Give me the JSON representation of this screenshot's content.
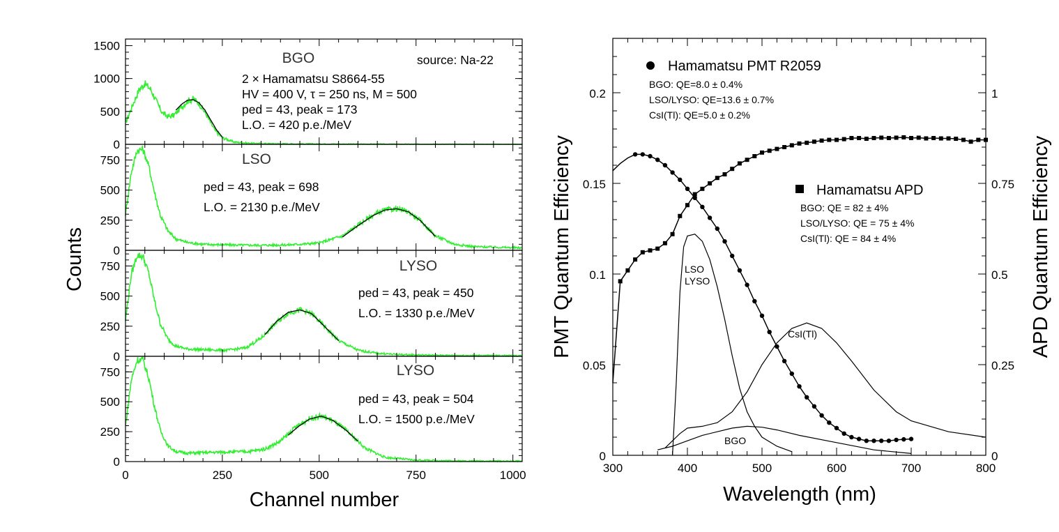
{
  "chart_data": [
    {
      "type": "line",
      "title": "",
      "xlabel": "Channel number",
      "ylabel": "Counts",
      "xlim": [
        0,
        1024
      ],
      "xticks": [
        0,
        250,
        500,
        750,
        1000
      ],
      "panels": [
        {
          "crystal": "BGO",
          "info_lines": [
            "2 × Hamamatsu S8664-55",
            "HV = 400 V,   τ = 250 ns,   M = 500",
            "ped = 43,   peak = 173",
            "L.O. = 420 p.e./MeV"
          ],
          "source": "source: Na-22",
          "ylim": [
            0,
            1600
          ],
          "yticks": [
            0,
            500,
            1000,
            1500
          ],
          "spectrum": {
            "x": [
              0,
              20,
              35,
              50,
              65,
              80,
              95,
              110,
              125,
              140,
              160,
              175,
              190,
              210,
              230,
              250,
              280,
              320,
              400,
              500,
              700,
              1024
            ],
            "y": [
              320,
              620,
              830,
              920,
              840,
              650,
              480,
              420,
              440,
              540,
              660,
              690,
              620,
              440,
              220,
              100,
              35,
              15,
              8,
              5,
              2,
              0
            ]
          },
          "fit": {
            "x": [
              130,
              145,
              160,
              175,
              190,
              205,
              220,
              235,
              250
            ],
            "y": [
              520,
              610,
              670,
              680,
              630,
              520,
              370,
              220,
              110
            ]
          }
        },
        {
          "crystal": "LSO",
          "info_lines": [
            "ped = 43,   peak = 698",
            "L.O. = 2130 p.e./MeV"
          ],
          "ylim": [
            0,
            880
          ],
          "yticks": [
            0,
            250,
            500,
            750
          ],
          "spectrum": {
            "x": [
              0,
              15,
              30,
              45,
              60,
              75,
              90,
              110,
              130,
              160,
              200,
              260,
              340,
              420,
              500,
              560,
              600,
              640,
              670,
              700,
              730,
              760,
              800,
              850,
              900,
              1024
            ],
            "y": [
              300,
              650,
              830,
              840,
              700,
              480,
              290,
              160,
              95,
              65,
              50,
              45,
              42,
              45,
              60,
              120,
              210,
              295,
              335,
              345,
              320,
              250,
              120,
              50,
              30,
              20
            ]
          },
          "fit": {
            "x": [
              560,
              600,
              640,
              670,
              700,
              730,
              760,
              800
            ],
            "y": [
              110,
              205,
              290,
              335,
              345,
              320,
              250,
              115
            ]
          }
        },
        {
          "crystal": "LYSO",
          "info_lines": [
            "ped = 43,   peak = 450",
            "L.O. = 1330 p.e./MeV"
          ],
          "ylim": [
            0,
            880
          ],
          "yticks": [
            0,
            250,
            500,
            750
          ],
          "spectrum": {
            "x": [
              0,
              15,
              30,
              45,
              60,
              75,
              90,
              110,
              130,
              160,
              200,
              260,
              310,
              350,
              390,
              420,
              450,
              480,
              510,
              550,
              600,
              650,
              700,
              800,
              1024
            ],
            "y": [
              300,
              680,
              840,
              830,
              690,
              460,
              270,
              140,
              85,
              60,
              55,
              50,
              70,
              150,
              280,
              360,
              385,
              355,
              260,
              130,
              50,
              25,
              15,
              8,
              5
            ]
          },
          "fit": {
            "x": [
              360,
              390,
              420,
              450,
              480,
              510,
              550
            ],
            "y": [
              180,
              290,
              365,
              385,
              355,
              260,
              130
            ]
          }
        },
        {
          "crystal": "LYSO",
          "info_lines": [
            "ped = 43,   peak = 504",
            "L.O. = 1500 p.e./MeV"
          ],
          "ylim": [
            0,
            880
          ],
          "yticks": [
            0,
            250,
            500,
            750
          ],
          "spectrum": {
            "x": [
              0,
              15,
              30,
              45,
              60,
              75,
              90,
              110,
              130,
              160,
              200,
              260,
              320,
              360,
              400,
              440,
              475,
              505,
              535,
              570,
              620,
              670,
              750,
              850,
              1024
            ],
            "y": [
              300,
              680,
              850,
              850,
              700,
              460,
              260,
              130,
              85,
              70,
              75,
              80,
              85,
              105,
              170,
              290,
              360,
              380,
              345,
              260,
              110,
              35,
              12,
              6,
              3
            ]
          },
          "fit": {
            "x": [
              420,
              445,
              475,
              505,
              535,
              570,
              600
            ],
            "y": [
              220,
              290,
              355,
              380,
              345,
              260,
              170
            ]
          }
        }
      ]
    },
    {
      "type": "line",
      "title": "",
      "xlabel": "Wavelength (nm)",
      "ylabel": "PMT Quantum Efficiency",
      "y2label": "APD Quantum Efficiency",
      "xlim": [
        300,
        800
      ],
      "ylim": [
        0,
        0.23
      ],
      "y2lim": [
        0,
        1.15
      ],
      "xticks": [
        300,
        400,
        500,
        600,
        700,
        800
      ],
      "yticks": [
        "0",
        "0.05",
        "0.1",
        "0.15",
        "0.2"
      ],
      "y2ticks": [
        "0",
        "0.25",
        "0.5",
        "0.75",
        "1"
      ],
      "legend": [
        {
          "marker": "circle",
          "label": "Hamamatsu PMT R2059",
          "lines": [
            "BGO: QE=8.0 ± 0.4%",
            "LSO/LYSO: QE=13.6 ± 0.7%",
            "CsI(Tl): QE=5.0 ± 0.2%"
          ]
        },
        {
          "marker": "square",
          "label": "Hamamatsu APD",
          "lines": [
            "BGO: QE = 82 ± 4%",
            "LSO/LYSO: QE = 75 ± 4%",
            "CsI(Tl): QE = 84 ± 4%"
          ]
        }
      ],
      "series": [
        {
          "name": "Hamamatsu PMT R2059",
          "axis": "left",
          "marker": "circle",
          "x": [
            300,
            310,
            320,
            330,
            340,
            350,
            360,
            370,
            380,
            390,
            400,
            410,
            420,
            430,
            440,
            450,
            460,
            470,
            480,
            490,
            500,
            510,
            520,
            530,
            540,
            550,
            560,
            570,
            580,
            590,
            600,
            610,
            620,
            630,
            640,
            650,
            660,
            670,
            680,
            690,
            700
          ],
          "y": [
            0.157,
            0.161,
            0.164,
            0.166,
            0.166,
            0.165,
            0.163,
            0.16,
            0.156,
            0.152,
            0.147,
            0.142,
            0.137,
            0.131,
            0.125,
            0.118,
            0.11,
            0.102,
            0.094,
            0.085,
            0.077,
            0.068,
            0.06,
            0.052,
            0.045,
            0.038,
            0.032,
            0.027,
            0.022,
            0.018,
            0.015,
            0.012,
            0.01,
            0.009,
            0.008,
            0.008,
            0.008,
            0.008,
            0.0085,
            0.0088,
            0.009
          ]
        },
        {
          "name": "Hamamatsu APD",
          "axis": "right",
          "marker": "square",
          "x": [
            300,
            310,
            320,
            330,
            340,
            350,
            360,
            370,
            380,
            390,
            400,
            410,
            420,
            430,
            440,
            450,
            460,
            470,
            480,
            490,
            500,
            510,
            520,
            530,
            540,
            550,
            560,
            570,
            580,
            590,
            600,
            610,
            620,
            630,
            640,
            650,
            660,
            670,
            680,
            690,
            700,
            710,
            720,
            730,
            740,
            750,
            760,
            770,
            780,
            790,
            800
          ],
          "y": [
            0.2,
            0.48,
            0.51,
            0.54,
            0.56,
            0.565,
            0.57,
            0.585,
            0.61,
            0.66,
            0.69,
            0.72,
            0.735,
            0.75,
            0.765,
            0.775,
            0.79,
            0.805,
            0.815,
            0.825,
            0.835,
            0.84,
            0.845,
            0.85,
            0.855,
            0.86,
            0.862,
            0.865,
            0.868,
            0.87,
            0.87,
            0.872,
            0.875,
            0.875,
            0.873,
            0.875,
            0.876,
            0.875,
            0.876,
            0.877,
            0.875,
            0.876,
            0.874,
            0.875,
            0.874,
            0.874,
            0.873,
            0.87,
            0.865,
            0.87,
            0.87
          ]
        },
        {
          "name": "LSO LYSO",
          "axis": "left",
          "marker": "none",
          "x": [
            380,
            385,
            390,
            395,
            400,
            410,
            420,
            430,
            440,
            450,
            460,
            470,
            480,
            490,
            500,
            520,
            540
          ],
          "y": [
            0.0,
            0.04,
            0.09,
            0.115,
            0.121,
            0.122,
            0.118,
            0.108,
            0.093,
            0.075,
            0.055,
            0.037,
            0.024,
            0.016,
            0.01,
            0.005,
            0.002
          ]
        },
        {
          "name": "CsI(Tl)",
          "axis": "left",
          "marker": "none",
          "x": [
            370,
            390,
            400,
            420,
            440,
            460,
            480,
            500,
            520,
            540,
            560,
            580,
            600,
            620,
            650,
            680,
            700,
            750,
            800
          ],
          "y": [
            0.004,
            0.012,
            0.015,
            0.016,
            0.018,
            0.024,
            0.035,
            0.05,
            0.062,
            0.07,
            0.073,
            0.07,
            0.062,
            0.052,
            0.036,
            0.024,
            0.019,
            0.013,
            0.01
          ]
        },
        {
          "name": "BGO",
          "axis": "left",
          "marker": "none",
          "x": [
            360,
            380,
            400,
            420,
            440,
            460,
            480,
            500,
            520,
            550,
            600,
            650,
            700
          ],
          "y": [
            0.003,
            0.005,
            0.008,
            0.011,
            0.013,
            0.015,
            0.016,
            0.0155,
            0.014,
            0.011,
            0.007,
            0.003,
            0.001
          ]
        }
      ]
    }
  ]
}
